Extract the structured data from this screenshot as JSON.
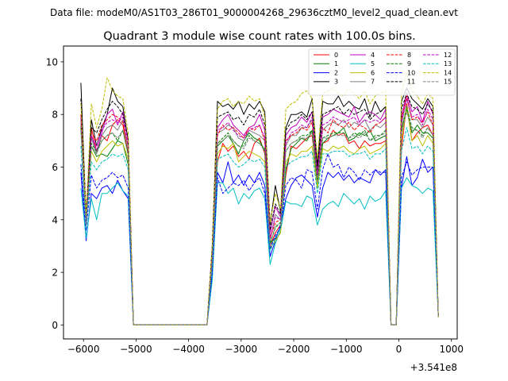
{
  "chart_data": {
    "type": "line",
    "suptitle": "Data file: modeM0/AS1T03_286T01_9000004268_29636cztM0_level2_quad_clean.evt",
    "title": "Quadrant 3 module wise count rates with 100.0s bins.",
    "xlabel": "",
    "ylabel": "",
    "offset_label": "+3.541e8",
    "xlim": [
      -6380,
      1110
    ],
    "ylim": [
      -0.53,
      10.6
    ],
    "xticks": [
      -6000,
      -5000,
      -4000,
      -3000,
      -2000,
      -1000,
      0,
      1000
    ],
    "xtick_labels": [
      "−6000",
      "−5000",
      "−4000",
      "−3000",
      "−2000",
      "−1000",
      "0",
      "1000"
    ],
    "yticks": [
      0,
      2,
      4,
      6,
      8,
      10
    ],
    "ytick_labels": [
      "0",
      "2",
      "4",
      "6",
      "8",
      "10"
    ],
    "legend_location": "top-right",
    "x": [
      -6050,
      -5950,
      -5850,
      -5750,
      -5650,
      -5550,
      -5450,
      -5350,
      -5250,
      -5150,
      -5050,
      -4950,
      -4850,
      -4750,
      -4650,
      -4550,
      -4450,
      -4350,
      -4250,
      -4150,
      -4050,
      -3950,
      -3850,
      -3750,
      -3650,
      -3550,
      -3450,
      -3350,
      -3250,
      -3150,
      -3050,
      -2950,
      -2850,
      -2750,
      -2650,
      -2550,
      -2450,
      -2350,
      -2250,
      -2150,
      -2050,
      -1950,
      -1850,
      -1750,
      -1650,
      -1550,
      -1450,
      -1350,
      -1250,
      -1150,
      -1050,
      -950,
      -850,
      -750,
      -650,
      -550,
      -450,
      -350,
      -250,
      -150,
      -50,
      50,
      150,
      250,
      350,
      450,
      550,
      650,
      750
    ],
    "series": [
      {
        "name": "0",
        "color": "#ff0000",
        "dash": false,
        "values": [
          7.9,
          3.9,
          7.5,
          6.6,
          7.2,
          7.0,
          7.6,
          7.8,
          7.6,
          6.5,
          0,
          0,
          0,
          0,
          0,
          0,
          0,
          0,
          0,
          0,
          0,
          0,
          0,
          0,
          0,
          2.5,
          6.2,
          6.9,
          6.6,
          6.8,
          6.4,
          6.6,
          6.3,
          6.9,
          7.1,
          6.5,
          3.0,
          3.5,
          3.8,
          5.7,
          6.8,
          6.7,
          6.9,
          7.1,
          7.2,
          5.5,
          6.9,
          7.0,
          7.4,
          7.2,
          7.3,
          6.9,
          7.0,
          6.7,
          7.0,
          6.8,
          6.9,
          6.9,
          7.0,
          0,
          0,
          6.7,
          8.4,
          7.0,
          7.3,
          7.5,
          7.6,
          7.2,
          0.3
        ]
      },
      {
        "name": "1",
        "color": "#008000",
        "dash": false,
        "values": [
          7.6,
          3.8,
          6.8,
          6.4,
          6.5,
          6.4,
          6.7,
          7.0,
          6.9,
          6.1,
          0,
          0,
          0,
          0,
          0,
          0,
          0,
          0,
          0,
          0,
          0,
          0,
          0,
          0,
          0,
          2.5,
          6.8,
          7.0,
          7.2,
          6.9,
          6.5,
          7.0,
          7.3,
          7.1,
          7.0,
          6.6,
          3.1,
          3.3,
          3.7,
          5.9,
          6.7,
          6.9,
          7.1,
          7.0,
          7.4,
          5.2,
          6.9,
          7.1,
          7.2,
          7.3,
          7.5,
          7.0,
          7.1,
          7.3,
          7.2,
          7.4,
          7.0,
          7.1,
          7.2,
          0,
          0,
          7.4,
          8.2,
          7.3,
          7.6,
          7.3,
          7.3,
          7.1,
          0.3
        ]
      },
      {
        "name": "2",
        "color": "#0000ff",
        "dash": false,
        "values": [
          5.8,
          3.2,
          5.0,
          4.8,
          5.2,
          5.3,
          5.0,
          5.5,
          5.1,
          4.8,
          0,
          0,
          0,
          0,
          0,
          0,
          0,
          0,
          0,
          0,
          0,
          0,
          0,
          0,
          0,
          1.9,
          5.8,
          5.4,
          6.2,
          5.4,
          5.7,
          5.3,
          5.7,
          5.4,
          5.8,
          5.3,
          2.6,
          3.2,
          3.8,
          4.8,
          5.3,
          5.6,
          5.7,
          5.5,
          5.3,
          4.1,
          5.2,
          5.8,
          5.6,
          5.8,
          5.5,
          5.7,
          5.4,
          5.6,
          5.5,
          5.4,
          5.9,
          5.7,
          5.9,
          0,
          0,
          5.2,
          6.4,
          5.3,
          5.6,
          6.3,
          5.8,
          6.0,
          0.3
        ]
      },
      {
        "name": "3",
        "color": "#000000",
        "dash": false,
        "values": [
          9.2,
          4.0,
          7.8,
          6.8,
          7.5,
          8.0,
          9.0,
          8.5,
          8.3,
          7.0,
          0,
          0,
          0,
          0,
          0,
          0,
          0,
          0,
          0,
          0,
          0,
          0,
          0,
          0,
          0,
          3.0,
          8.5,
          8.3,
          8.4,
          8.2,
          8.5,
          8.0,
          8.4,
          8.2,
          8.5,
          8.1,
          3.8,
          5.3,
          4.3,
          7.5,
          8.0,
          8.0,
          8.1,
          7.9,
          8.6,
          6.1,
          8.5,
          8.4,
          8.4,
          8.7,
          8.3,
          8.5,
          8.3,
          8.2,
          8.6,
          7.9,
          8.5,
          8.1,
          8.3,
          0,
          0,
          8.5,
          9.0,
          8.6,
          8.4,
          8.2,
          8.6,
          8.3,
          0.3
        ]
      },
      {
        "name": "4",
        "color": "#c000c0",
        "dash": false,
        "values": [
          8.0,
          3.8,
          7.2,
          6.6,
          7.3,
          8.0,
          8.2,
          7.6,
          8.1,
          7.0,
          0,
          0,
          0,
          0,
          0,
          0,
          0,
          0,
          0,
          0,
          0,
          0,
          0,
          0,
          0,
          2.8,
          7.5,
          7.8,
          8.0,
          7.6,
          7.4,
          7.2,
          7.5,
          7.6,
          8.0,
          7.4,
          3.5,
          4.5,
          4.1,
          7.2,
          7.5,
          7.6,
          7.9,
          7.7,
          8.1,
          5.8,
          7.9,
          8.0,
          8.2,
          8.1,
          8.0,
          7.9,
          8.3,
          7.7,
          8.0,
          8.1,
          8.0,
          7.8,
          8.2,
          0,
          0,
          7.9,
          8.8,
          8.1,
          8.3,
          7.7,
          8.5,
          8.0,
          0.3
        ]
      },
      {
        "name": "5",
        "color": "#00bfbf",
        "dash": false,
        "values": [
          5.2,
          3.3,
          4.8,
          4.0,
          5.0,
          5.0,
          5.2,
          5.4,
          5.1,
          4.9,
          0,
          0,
          0,
          0,
          0,
          0,
          0,
          0,
          0,
          0,
          0,
          0,
          0,
          0,
          0,
          1.7,
          5.4,
          5.4,
          5.0,
          5.2,
          4.6,
          5.0,
          4.8,
          5.1,
          5.2,
          4.8,
          2.3,
          3.1,
          3.6,
          4.7,
          4.6,
          4.6,
          4.5,
          4.9,
          4.8,
          3.8,
          4.4,
          4.6,
          4.7,
          4.5,
          5.0,
          4.8,
          4.6,
          4.8,
          4.4,
          4.9,
          4.7,
          4.8,
          5.1,
          0,
          0,
          5.2,
          5.6,
          5.3,
          5.2,
          5.0,
          5.2,
          5.1,
          0.3
        ]
      },
      {
        "name": "6",
        "color": "#bfbf00",
        "dash": false,
        "values": [
          7.5,
          4.1,
          6.6,
          6.2,
          6.6,
          6.8,
          7.0,
          6.8,
          6.9,
          6.3,
          0,
          0,
          0,
          0,
          0,
          0,
          0,
          0,
          0,
          0,
          0,
          0,
          0,
          0,
          0,
          2.5,
          6.5,
          6.8,
          6.7,
          6.9,
          6.2,
          6.4,
          6.6,
          6.5,
          6.4,
          6.2,
          2.9,
          3.2,
          3.5,
          6.2,
          6.5,
          6.4,
          6.6,
          6.6,
          6.8,
          5.2,
          6.7,
          6.6,
          6.8,
          6.7,
          6.8,
          6.6,
          6.5,
          6.7,
          6.8,
          6.5,
          6.6,
          6.7,
          6.9,
          0,
          0,
          7.0,
          8.3,
          7.0,
          7.2,
          6.8,
          7.2,
          6.9,
          0.3
        ]
      },
      {
        "name": "7",
        "color": "#808080",
        "dash": false,
        "values": [
          7.8,
          3.9,
          7.1,
          6.5,
          7.2,
          7.5,
          7.6,
          7.4,
          7.8,
          6.7,
          0,
          0,
          0,
          0,
          0,
          0,
          0,
          0,
          0,
          0,
          0,
          0,
          0,
          0,
          0,
          2.7,
          7.3,
          7.4,
          7.6,
          7.5,
          7.1,
          7.0,
          7.4,
          7.3,
          7.2,
          7.0,
          3.2,
          4.2,
          4.0,
          6.8,
          7.2,
          7.2,
          7.5,
          7.5,
          7.8,
          5.6,
          7.4,
          7.6,
          7.7,
          7.6,
          7.8,
          7.5,
          7.7,
          7.6,
          7.8,
          7.4,
          7.6,
          7.5,
          7.7,
          0,
          0,
          7.6,
          8.6,
          7.8,
          7.8,
          7.5,
          7.9,
          7.6,
          0.3
        ]
      },
      {
        "name": "8",
        "color": "#ff0000",
        "dash": true,
        "values": [
          8.0,
          4.1,
          7.3,
          7.0,
          7.6,
          7.8,
          8.0,
          7.9,
          7.7,
          6.9,
          0,
          0,
          0,
          0,
          0,
          0,
          0,
          0,
          0,
          0,
          0,
          0,
          0,
          0,
          0,
          2.7,
          7.2,
          7.6,
          7.4,
          7.5,
          7.3,
          7.1,
          7.5,
          7.4,
          7.6,
          7.0,
          3.3,
          3.9,
          4.0,
          7.0,
          7.2,
          7.3,
          7.5,
          7.4,
          7.7,
          5.7,
          7.5,
          7.3,
          7.8,
          7.6,
          7.5,
          7.7,
          7.4,
          7.6,
          7.5,
          7.3,
          7.6,
          7.7,
          7.9,
          0,
          0,
          7.8,
          8.7,
          7.8,
          7.9,
          7.7,
          8.1,
          7.6,
          0.3
        ]
      },
      {
        "name": "9",
        "color": "#008000",
        "dash": true,
        "values": [
          7.5,
          3.9,
          6.9,
          6.6,
          7.0,
          7.2,
          7.3,
          7.0,
          7.4,
          6.5,
          0,
          0,
          0,
          0,
          0,
          0,
          0,
          0,
          0,
          0,
          0,
          0,
          0,
          0,
          0,
          2.6,
          6.9,
          7.1,
          7.3,
          7.0,
          6.8,
          6.8,
          7.2,
          7.0,
          6.9,
          6.7,
          3.1,
          3.7,
          3.9,
          6.6,
          6.9,
          7.0,
          7.2,
          7.2,
          7.4,
          5.5,
          7.1,
          7.2,
          7.3,
          7.3,
          7.3,
          7.1,
          7.3,
          7.2,
          7.4,
          7.0,
          7.2,
          7.2,
          7.4,
          0,
          0,
          7.4,
          8.3,
          7.5,
          7.4,
          7.2,
          7.5,
          7.2,
          0.3
        ]
      },
      {
        "name": "10",
        "color": "#0000ff",
        "dash": true,
        "values": [
          6.1,
          3.6,
          5.7,
          5.2,
          5.5,
          5.6,
          5.8,
          5.6,
          5.7,
          5.2,
          0,
          0,
          0,
          0,
          0,
          0,
          0,
          0,
          0,
          0,
          0,
          0,
          0,
          0,
          0,
          2.0,
          5.6,
          5.0,
          5.2,
          5.4,
          5.3,
          5.5,
          5.1,
          5.4,
          5.6,
          5.0,
          2.9,
          3.4,
          3.7,
          5.3,
          5.6,
          5.5,
          5.2,
          5.9,
          5.8,
          4.4,
          5.9,
          6.5,
          6.0,
          6.1,
          5.6,
          6.0,
          5.8,
          5.5,
          5.9,
          5.7,
          5.9,
          5.8,
          5.8,
          0,
          0,
          5.6,
          6.2,
          5.7,
          5.9,
          6.0,
          6.0,
          6.0,
          0.3
        ]
      },
      {
        "name": "11",
        "color": "#000000",
        "dash": true,
        "values": [
          8.6,
          4.2,
          7.5,
          7.3,
          7.8,
          8.2,
          8.5,
          8.3,
          8.0,
          7.1,
          0,
          0,
          0,
          0,
          0,
          0,
          0,
          0,
          0,
          0,
          0,
          0,
          0,
          0,
          0,
          2.9,
          7.9,
          8.0,
          8.1,
          7.8,
          7.9,
          7.6,
          8.0,
          7.9,
          8.2,
          7.6,
          3.6,
          4.6,
          4.2,
          7.4,
          7.7,
          7.8,
          8.0,
          7.8,
          8.1,
          5.9,
          8.0,
          8.1,
          8.2,
          8.3,
          8.0,
          8.2,
          8.0,
          8.1,
          8.2,
          7.8,
          8.0,
          8.1,
          8.3,
          0,
          0,
          8.2,
          8.8,
          8.3,
          8.2,
          8.0,
          8.4,
          8.1,
          0.3
        ]
      },
      {
        "name": "12",
        "color": "#c000c0",
        "dash": true,
        "values": [
          7.9,
          3.9,
          7.2,
          6.8,
          7.4,
          7.7,
          7.8,
          7.7,
          7.9,
          6.8,
          0,
          0,
          0,
          0,
          0,
          0,
          0,
          0,
          0,
          0,
          0,
          0,
          0,
          0,
          0,
          2.7,
          7.4,
          7.5,
          7.7,
          7.4,
          7.2,
          7.1,
          7.4,
          7.5,
          7.6,
          7.1,
          3.3,
          4.1,
          4.0,
          6.9,
          7.3,
          7.4,
          7.6,
          7.5,
          7.9,
          5.7,
          7.6,
          7.7,
          7.9,
          7.8,
          7.7,
          7.8,
          7.9,
          7.6,
          7.8,
          7.7,
          7.8,
          7.7,
          7.9,
          0,
          0,
          7.7,
          8.6,
          7.9,
          8.0,
          7.6,
          8.2,
          7.8,
          0.3
        ]
      },
      {
        "name": "13",
        "color": "#00bfbf",
        "dash": true,
        "values": [
          6.8,
          3.7,
          6.2,
          5.9,
          6.2,
          6.3,
          6.5,
          6.4,
          6.5,
          5.9,
          0,
          0,
          0,
          0,
          0,
          0,
          0,
          0,
          0,
          0,
          0,
          0,
          0,
          0,
          0,
          2.3,
          6.3,
          6.4,
          6.5,
          6.2,
          6.0,
          6.1,
          6.3,
          6.2,
          6.3,
          6.0,
          2.8,
          3.3,
          3.7,
          6.0,
          6.2,
          6.3,
          6.4,
          6.4,
          6.6,
          5.0,
          6.5,
          6.5,
          6.6,
          6.6,
          6.6,
          6.4,
          6.5,
          6.5,
          6.6,
          6.3,
          6.5,
          6.5,
          6.7,
          0,
          0,
          6.6,
          7.5,
          6.7,
          6.8,
          6.5,
          6.8,
          6.6,
          0.3
        ]
      },
      {
        "name": "14",
        "color": "#bfbf00",
        "dash": true,
        "values": [
          8.4,
          4.2,
          8.4,
          7.5,
          8.2,
          9.4,
          8.9,
          8.7,
          8.6,
          7.3,
          0,
          0,
          0,
          0,
          0,
          0,
          0,
          0,
          0,
          0,
          0,
          0,
          0,
          0,
          0,
          3.0,
          8.2,
          8.5,
          8.6,
          8.3,
          8.5,
          8.4,
          8.7,
          8.5,
          8.6,
          7.9,
          3.9,
          5.0,
          4.4,
          8.2,
          8.4,
          8.5,
          8.8,
          8.9,
          8.6,
          6.3,
          8.8,
          8.9,
          9.0,
          8.8,
          8.7,
          9.0,
          8.8,
          8.6,
          8.9,
          8.4,
          8.7,
          8.8,
          8.9,
          0,
          0,
          8.8,
          9.6,
          8.9,
          8.7,
          8.4,
          8.8,
          8.6,
          0.3
        ]
      },
      {
        "name": "15",
        "color": "#808080",
        "dash": true,
        "values": [
          7.4,
          3.8,
          6.8,
          6.5,
          7.0,
          7.2,
          7.3,
          7.1,
          7.4,
          6.4,
          0,
          0,
          0,
          0,
          0,
          0,
          0,
          0,
          0,
          0,
          0,
          0,
          0,
          0,
          0,
          2.5,
          6.9,
          7.0,
          7.2,
          7.0,
          6.8,
          6.7,
          7.1,
          7.0,
          6.9,
          6.6,
          3.0,
          3.8,
          3.8,
          6.6,
          6.9,
          7.0,
          7.1,
          7.1,
          7.3,
          5.4,
          7.1,
          7.1,
          7.2,
          7.2,
          7.2,
          7.1,
          7.2,
          7.1,
          7.3,
          7.0,
          7.1,
          7.2,
          7.3,
          0,
          0,
          7.3,
          8.1,
          7.4,
          7.4,
          7.1,
          7.5,
          7.2,
          0.3
        ]
      }
    ]
  }
}
